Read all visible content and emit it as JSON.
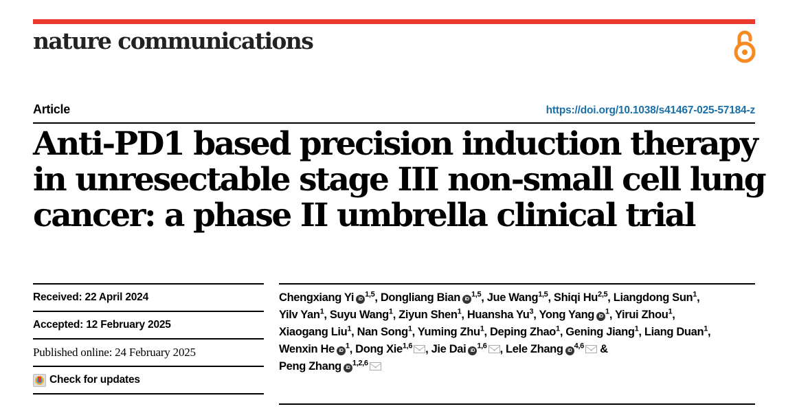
{
  "header": {
    "journal_name": "nature communications",
    "brand_color": "#e8392c",
    "open_access_icon": "open-access-lock-icon",
    "open_access_color": "#f58a23"
  },
  "article": {
    "type_label": "Article",
    "doi": "https://doi.org/10.1038/s41467-025-57184-z",
    "title_lines": [
      "Anti-PD1 based precision induction therapy",
      "in unresectable stage III non-small cell lung",
      "cancer: a phase II umbrella clinical trial"
    ]
  },
  "dates": {
    "received": "Received: 22 April 2024",
    "accepted": "Accepted: 12 February 2025",
    "published": "Published online: 24 February 2025",
    "check_updates": "Check for updates"
  },
  "authors": [
    {
      "name": "Chengxiang Yi",
      "orcid": true,
      "aff": "1,5",
      "mail": false
    },
    {
      "name": "Dongliang Bian",
      "orcid": true,
      "aff": "1,5",
      "mail": false
    },
    {
      "name": "Jue Wang",
      "orcid": false,
      "aff": "1,5",
      "mail": false
    },
    {
      "name": "Shiqi Hu",
      "orcid": false,
      "aff": "2,5",
      "mail": false
    },
    {
      "name": "Liangdong Sun",
      "orcid": false,
      "aff": "1",
      "mail": false
    },
    {
      "name": "Yilv Yan",
      "orcid": false,
      "aff": "1",
      "mail": false
    },
    {
      "name": "Suyu Wang",
      "orcid": false,
      "aff": "1",
      "mail": false
    },
    {
      "name": "Ziyun Shen",
      "orcid": false,
      "aff": "1",
      "mail": false
    },
    {
      "name": "Huansha Yu",
      "orcid": false,
      "aff": "3",
      "mail": false
    },
    {
      "name": "Yong Yang",
      "orcid": true,
      "aff": "1",
      "mail": false
    },
    {
      "name": "Yirui Zhou",
      "orcid": false,
      "aff": "1",
      "mail": false
    },
    {
      "name": "Xiaogang Liu",
      "orcid": false,
      "aff": "1",
      "mail": false
    },
    {
      "name": "Nan Song",
      "orcid": false,
      "aff": "1",
      "mail": false
    },
    {
      "name": "Yuming Zhu",
      "orcid": false,
      "aff": "1",
      "mail": false
    },
    {
      "name": "Deping Zhao",
      "orcid": false,
      "aff": "1",
      "mail": false
    },
    {
      "name": "Gening Jiang",
      "orcid": false,
      "aff": "1",
      "mail": false
    },
    {
      "name": "Liang Duan",
      "orcid": false,
      "aff": "1",
      "mail": false
    },
    {
      "name": "Wenxin He",
      "orcid": true,
      "aff": "1",
      "mail": false
    },
    {
      "name": "Dong Xie",
      "orcid": false,
      "aff": "1,6",
      "mail": true
    },
    {
      "name": "Jie Dai",
      "orcid": true,
      "aff": "1,6",
      "mail": true
    },
    {
      "name": "Lele Zhang",
      "orcid": true,
      "aff": "4,6",
      "mail": true
    },
    {
      "name": "Peng Zhang",
      "orcid": true,
      "aff": "1,2,6",
      "mail": true
    }
  ],
  "author_separators": {
    "comma": ", ",
    "and": " & "
  },
  "orcid_label": "iD",
  "line_breaks_after": [
    4,
    10,
    16,
    20
  ]
}
